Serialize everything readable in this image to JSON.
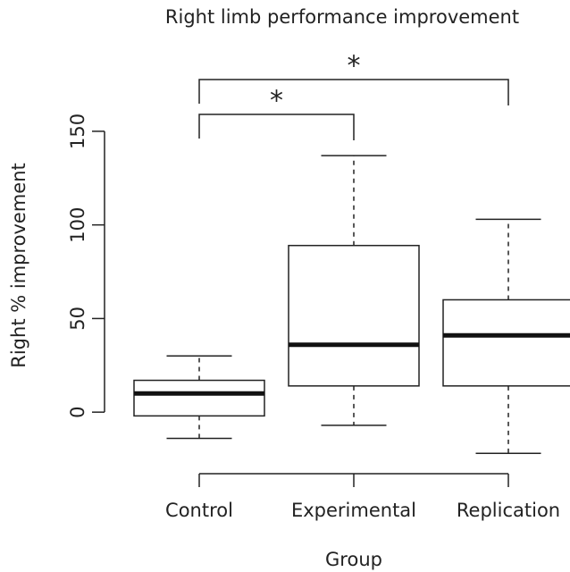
{
  "chart_data": {
    "type": "box",
    "title": "Right limb performance improvement",
    "x_label": "Group",
    "y_label": "Right % improvement",
    "categories": [
      "Control",
      "Experimental",
      "Replication"
    ],
    "boxes": [
      {
        "whislo": -14,
        "q1": -2,
        "median": 10,
        "q3": 17,
        "whishi": 30
      },
      {
        "whislo": -7,
        "q1": 14,
        "median": 36,
        "q3": 89,
        "whishi": 137
      },
      {
        "whislo": -22,
        "q1": 14,
        "median": 41,
        "q3": 60,
        "whishi": 103
      }
    ],
    "ylim": [
      -30,
      170
    ],
    "yticks": [
      0,
      50,
      100,
      150
    ],
    "significance": [
      {
        "groups": [
          0,
          1
        ],
        "label": "*"
      },
      {
        "groups": [
          0,
          2
        ],
        "label": "*"
      }
    ]
  }
}
